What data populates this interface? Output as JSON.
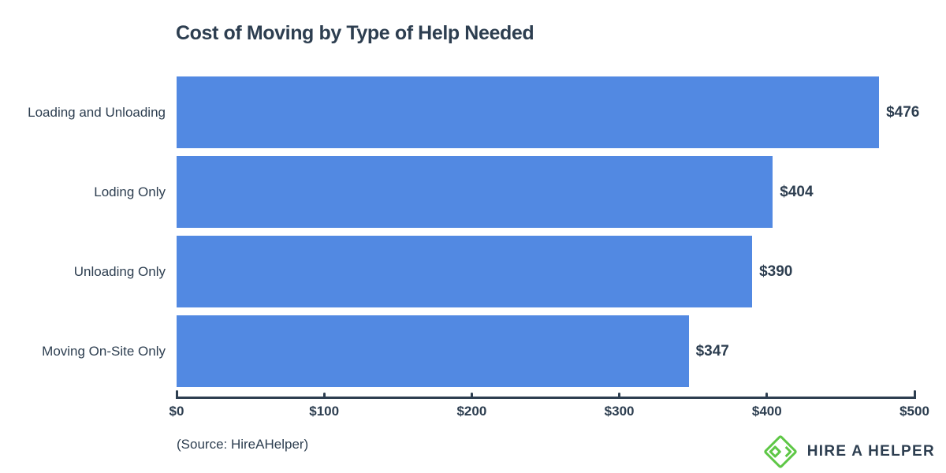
{
  "title": "Cost of Moving by Type of Help Needed",
  "source_note": "(Source: HireAHelper)",
  "logo": {
    "text": "HIRE A HELPER",
    "icon": "hireahelper-diamond-icon"
  },
  "colors": {
    "bar_blue": "#5289e2",
    "navy_text": "#2d3e50",
    "logo_green": "#5ec746",
    "background": "#ffffff"
  },
  "chart_data": {
    "type": "bar",
    "orientation": "horizontal",
    "title": "Cost of Moving by Type of Help Needed",
    "categories": [
      "Loading and Unloading",
      "Loding Only",
      "Unloading Only",
      "Moving On-Site Only"
    ],
    "values": [
      476,
      404,
      390,
      347
    ],
    "value_labels": [
      "$476",
      "$404",
      "$390",
      "$347"
    ],
    "xlabel": "",
    "ylabel": "",
    "xlim": [
      0,
      500
    ],
    "x_ticks": [
      0,
      100,
      200,
      300,
      400,
      500
    ],
    "x_tick_labels": [
      "$0",
      "$100",
      "$200",
      "$300",
      "$400",
      "$500"
    ],
    "grid": false,
    "legend": false,
    "bar_color": "#5289e2"
  }
}
